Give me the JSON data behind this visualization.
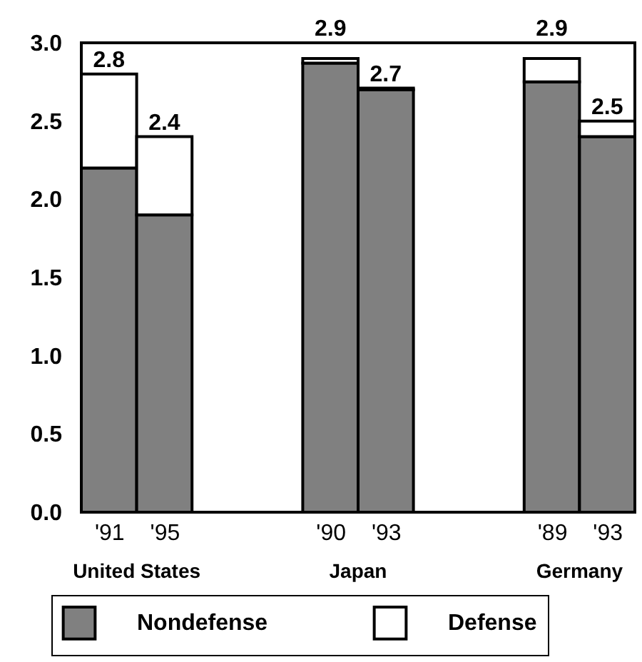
{
  "chart_data": {
    "type": "bar",
    "stacked": true,
    "categories": [
      "'91",
      "'95",
      "'90",
      "'93",
      "'89",
      "'93"
    ],
    "series": [
      {
        "name": "Nondefense",
        "color": "#808080",
        "values": [
          2.2,
          1.9,
          2.87,
          2.7,
          2.75,
          2.4
        ]
      },
      {
        "name": "Defense",
        "color": "#ffffff",
        "values": [
          0.6,
          0.5,
          0.03,
          0.01,
          0.15,
          0.1
        ]
      }
    ],
    "totals": [
      "2.8",
      "2.4",
      "2.9",
      "2.7",
      "2.9",
      "2.5"
    ],
    "annotations": [
      "United States",
      "Japan",
      "Germany"
    ],
    "ylim": [
      0,
      3
    ],
    "yticks": [
      {
        "value": 0,
        "label": "0.0"
      },
      {
        "value": 0.5,
        "label": "0.5"
      },
      {
        "value": 1,
        "label": "1.0"
      },
      {
        "value": 1.5,
        "label": "1.5"
      },
      {
        "value": 2,
        "label": "2.0"
      },
      {
        "value": 2.5,
        "label": "2.5"
      },
      {
        "value": 3,
        "label": "3.0"
      }
    ],
    "grid": false,
    "legend": "bottom"
  }
}
